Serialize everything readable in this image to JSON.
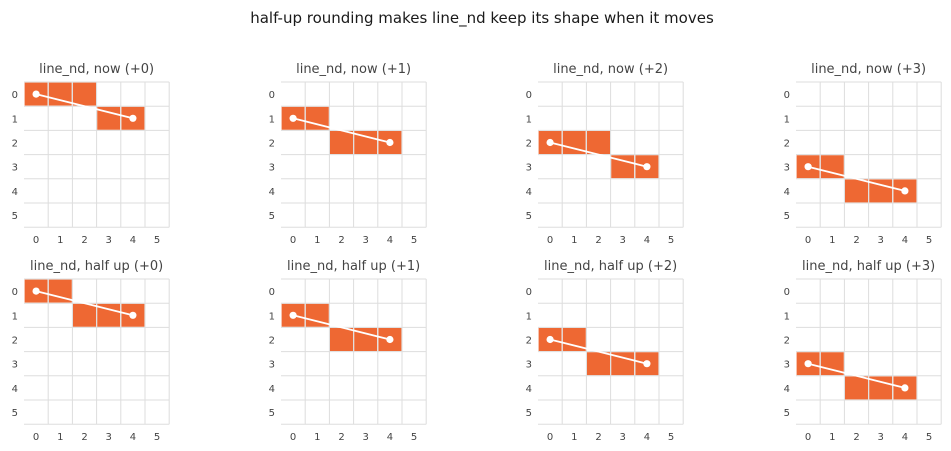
{
  "chart_data": {
    "type": "heatmap",
    "title": "half-up rounding makes line_nd keep its shape when it moves",
    "colors": {
      "cell": "#ee6833",
      "grid": "#dddddd",
      "line": "#ffffff"
    },
    "grid_size": 6,
    "xticks": [
      "0",
      "1",
      "2",
      "3",
      "4",
      "5"
    ],
    "yticks": [
      "0",
      "1",
      "2",
      "3",
      "4",
      "5"
    ],
    "grid": true,
    "panels": [
      {
        "title": "line_nd, now (+0)",
        "start": [
          0,
          0
        ],
        "end": [
          4,
          1
        ],
        "cells": [
          [
            0,
            0
          ],
          [
            1,
            0
          ],
          [
            2,
            0
          ],
          [
            3,
            1
          ],
          [
            4,
            1
          ]
        ]
      },
      {
        "title": "line_nd, now (+1)",
        "start": [
          0,
          1
        ],
        "end": [
          4,
          2
        ],
        "cells": [
          [
            0,
            1
          ],
          [
            1,
            1
          ],
          [
            2,
            2
          ],
          [
            3,
            2
          ],
          [
            4,
            2
          ]
        ]
      },
      {
        "title": "line_nd, now (+2)",
        "start": [
          0,
          2
        ],
        "end": [
          4,
          3
        ],
        "cells": [
          [
            0,
            2
          ],
          [
            1,
            2
          ],
          [
            2,
            2
          ],
          [
            3,
            3
          ],
          [
            4,
            3
          ]
        ]
      },
      {
        "title": "line_nd, now (+3)",
        "start": [
          0,
          3
        ],
        "end": [
          4,
          4
        ],
        "cells": [
          [
            0,
            3
          ],
          [
            1,
            3
          ],
          [
            2,
            4
          ],
          [
            3,
            4
          ],
          [
            4,
            4
          ]
        ]
      },
      {
        "title": "line_nd, half up (+0)",
        "start": [
          0,
          0
        ],
        "end": [
          4,
          1
        ],
        "cells": [
          [
            0,
            0
          ],
          [
            1,
            0
          ],
          [
            2,
            1
          ],
          [
            3,
            1
          ],
          [
            4,
            1
          ]
        ]
      },
      {
        "title": "line_nd, half up (+1)",
        "start": [
          0,
          1
        ],
        "end": [
          4,
          2
        ],
        "cells": [
          [
            0,
            1
          ],
          [
            1,
            1
          ],
          [
            2,
            2
          ],
          [
            3,
            2
          ],
          [
            4,
            2
          ]
        ]
      },
      {
        "title": "line_nd, half up (+2)",
        "start": [
          0,
          2
        ],
        "end": [
          4,
          3
        ],
        "cells": [
          [
            0,
            2
          ],
          [
            1,
            2
          ],
          [
            2,
            3
          ],
          [
            3,
            3
          ],
          [
            4,
            3
          ]
        ]
      },
      {
        "title": "line_nd, half up (+3)",
        "start": [
          0,
          3
        ],
        "end": [
          4,
          4
        ],
        "cells": [
          [
            0,
            3
          ],
          [
            1,
            3
          ],
          [
            2,
            4
          ],
          [
            3,
            4
          ],
          [
            4,
            4
          ]
        ]
      }
    ]
  }
}
